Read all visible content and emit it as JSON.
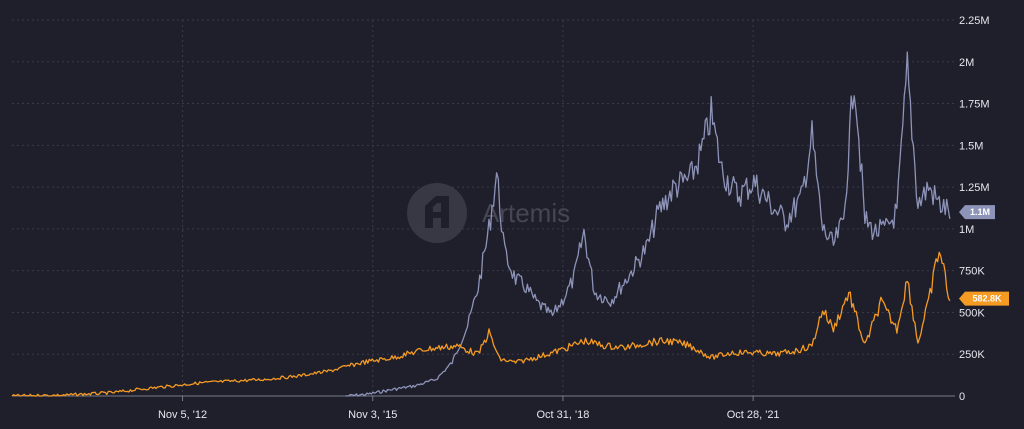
{
  "watermark": "Artemis",
  "chart_data": {
    "type": "line",
    "x_tick_labels": [
      "Nov 5, '12",
      "Nov 3, '15",
      "Oct 31, '18",
      "Oct 28, '21"
    ],
    "y_tick_labels": [
      "0",
      "250K",
      "500K",
      "750K",
      "1M",
      "1.25M",
      "1.5M",
      "1.75M",
      "2M",
      "2.25M"
    ],
    "ylim": [
      0,
      2250000
    ],
    "xlim": [
      "2010-03-01",
      "2024-12-31"
    ],
    "grid": true,
    "y_axis_side": "right",
    "series": [
      {
        "color": "#8e93b8",
        "last_value_label": "1.1M",
        "points": [
          [
            "2015-06-01",
            0
          ],
          [
            "2015-10-01",
            10000
          ],
          [
            "2016-03-01",
            40000
          ],
          [
            "2016-07-01",
            60000
          ],
          [
            "2016-11-01",
            100000
          ],
          [
            "2017-02-01",
            200000
          ],
          [
            "2017-05-01",
            420000
          ],
          [
            "2017-07-01",
            650000
          ],
          [
            "2017-09-01",
            1000000
          ],
          [
            "2017-10-15",
            1330000
          ],
          [
            "2017-12-01",
            850000
          ],
          [
            "2018-02-01",
            700000
          ],
          [
            "2018-04-01",
            650000
          ],
          [
            "2018-06-01",
            560000
          ],
          [
            "2018-09-01",
            480000
          ],
          [
            "2018-11-01",
            580000
          ],
          [
            "2019-01-01",
            700000
          ],
          [
            "2019-03-01",
            980000
          ],
          [
            "2019-05-01",
            620000
          ],
          [
            "2019-08-01",
            570000
          ],
          [
            "2019-11-01",
            700000
          ],
          [
            "2020-01-01",
            800000
          ],
          [
            "2020-03-01",
            900000
          ],
          [
            "2020-05-01",
            1100000
          ],
          [
            "2020-08-01",
            1250000
          ],
          [
            "2020-11-01",
            1300000
          ],
          [
            "2021-01-01",
            1450000
          ],
          [
            "2021-03-01",
            1680000
          ],
          [
            "2021-05-01",
            1350000
          ],
          [
            "2021-08-01",
            1200000
          ],
          [
            "2021-11-01",
            1280000
          ],
          [
            "2022-02-01",
            1150000
          ],
          [
            "2022-05-01",
            1050000
          ],
          [
            "2022-08-01",
            1180000
          ],
          [
            "2022-10-01",
            1550000
          ],
          [
            "2022-12-01",
            1000000
          ],
          [
            "2023-02-01",
            900000
          ],
          [
            "2023-04-01",
            1050000
          ],
          [
            "2023-06-01",
            1930000
          ],
          [
            "2023-08-01",
            1050000
          ],
          [
            "2023-10-01",
            980000
          ],
          [
            "2023-12-01",
            1000000
          ],
          [
            "2024-02-01",
            1100000
          ],
          [
            "2024-04-01",
            1950000
          ],
          [
            "2024-06-01",
            1150000
          ],
          [
            "2024-08-01",
            1250000
          ],
          [
            "2024-10-01",
            1150000
          ],
          [
            "2024-12-01",
            1100000
          ]
        ]
      },
      {
        "color": "#f59a23",
        "last_value_label": "582.8K",
        "points": [
          [
            "2010-03-01",
            0
          ],
          [
            "2011-01-01",
            5000
          ],
          [
            "2011-10-01",
            20000
          ],
          [
            "2012-03-01",
            40000
          ],
          [
            "2012-09-01",
            60000
          ],
          [
            "2013-03-01",
            80000
          ],
          [
            "2013-09-01",
            90000
          ],
          [
            "2014-03-01",
            100000
          ],
          [
            "2014-09-01",
            120000
          ],
          [
            "2015-03-01",
            150000
          ],
          [
            "2015-09-01",
            200000
          ],
          [
            "2016-03-01",
            230000
          ],
          [
            "2016-09-01",
            280000
          ],
          [
            "2017-03-01",
            300000
          ],
          [
            "2017-07-01",
            250000
          ],
          [
            "2017-09-01",
            380000
          ],
          [
            "2017-11-01",
            220000
          ],
          [
            "2018-02-01",
            200000
          ],
          [
            "2018-07-01",
            240000
          ],
          [
            "2018-11-01",
            280000
          ],
          [
            "2019-03-01",
            330000
          ],
          [
            "2019-07-01",
            300000
          ],
          [
            "2019-11-01",
            290000
          ],
          [
            "2020-03-01",
            320000
          ],
          [
            "2020-07-01",
            330000
          ],
          [
            "2020-11-01",
            300000
          ],
          [
            "2021-03-01",
            230000
          ],
          [
            "2021-07-01",
            260000
          ],
          [
            "2021-11-01",
            260000
          ],
          [
            "2022-03-01",
            250000
          ],
          [
            "2022-07-01",
            270000
          ],
          [
            "2022-10-01",
            300000
          ],
          [
            "2022-12-01",
            520000
          ],
          [
            "2023-02-01",
            400000
          ],
          [
            "2023-05-01",
            620000
          ],
          [
            "2023-08-01",
            300000
          ],
          [
            "2023-11-01",
            560000
          ],
          [
            "2024-02-01",
            400000
          ],
          [
            "2024-04-01",
            700000
          ],
          [
            "2024-06-01",
            320000
          ],
          [
            "2024-08-01",
            560000
          ],
          [
            "2024-10-01",
            880000
          ],
          [
            "2024-12-01",
            582800
          ]
        ]
      }
    ]
  }
}
